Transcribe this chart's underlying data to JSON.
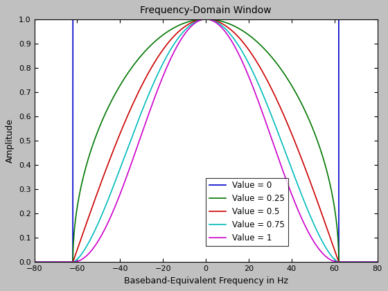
{
  "title": "Frequency-Domain Window",
  "xlabel": "Baseband-Equivalent Frequency in Hz",
  "ylabel": "Amplitude",
  "xlim": [
    -80,
    80
  ],
  "ylim": [
    0,
    1.0
  ],
  "xticks": [
    -80,
    -60,
    -40,
    -20,
    0,
    20,
    40,
    60,
    80
  ],
  "yticks": [
    0,
    0.1,
    0.2,
    0.3,
    0.4,
    0.5,
    0.6,
    0.7,
    0.8,
    0.9,
    1
  ],
  "background_color": "#c0c0c0",
  "axes_bg": "#ffffff",
  "series": [
    {
      "label": "Value = 0",
      "alpha": 0.0,
      "color": "#0000cc"
    },
    {
      "label": "Value = 0.25",
      "alpha": 0.25,
      "color": "#007700"
    },
    {
      "label": "Value = 0.5",
      "alpha": 0.5,
      "color": "#cc0000"
    },
    {
      "label": "Value = 0.75",
      "alpha": 0.75,
      "color": "#00bbbb"
    },
    {
      "label": "Value = 1",
      "alpha": 1.0,
      "color": "#cc00cc"
    }
  ],
  "f_max": 62.0,
  "figsize": [
    5.6,
    4.2
  ],
  "dpi": 100
}
